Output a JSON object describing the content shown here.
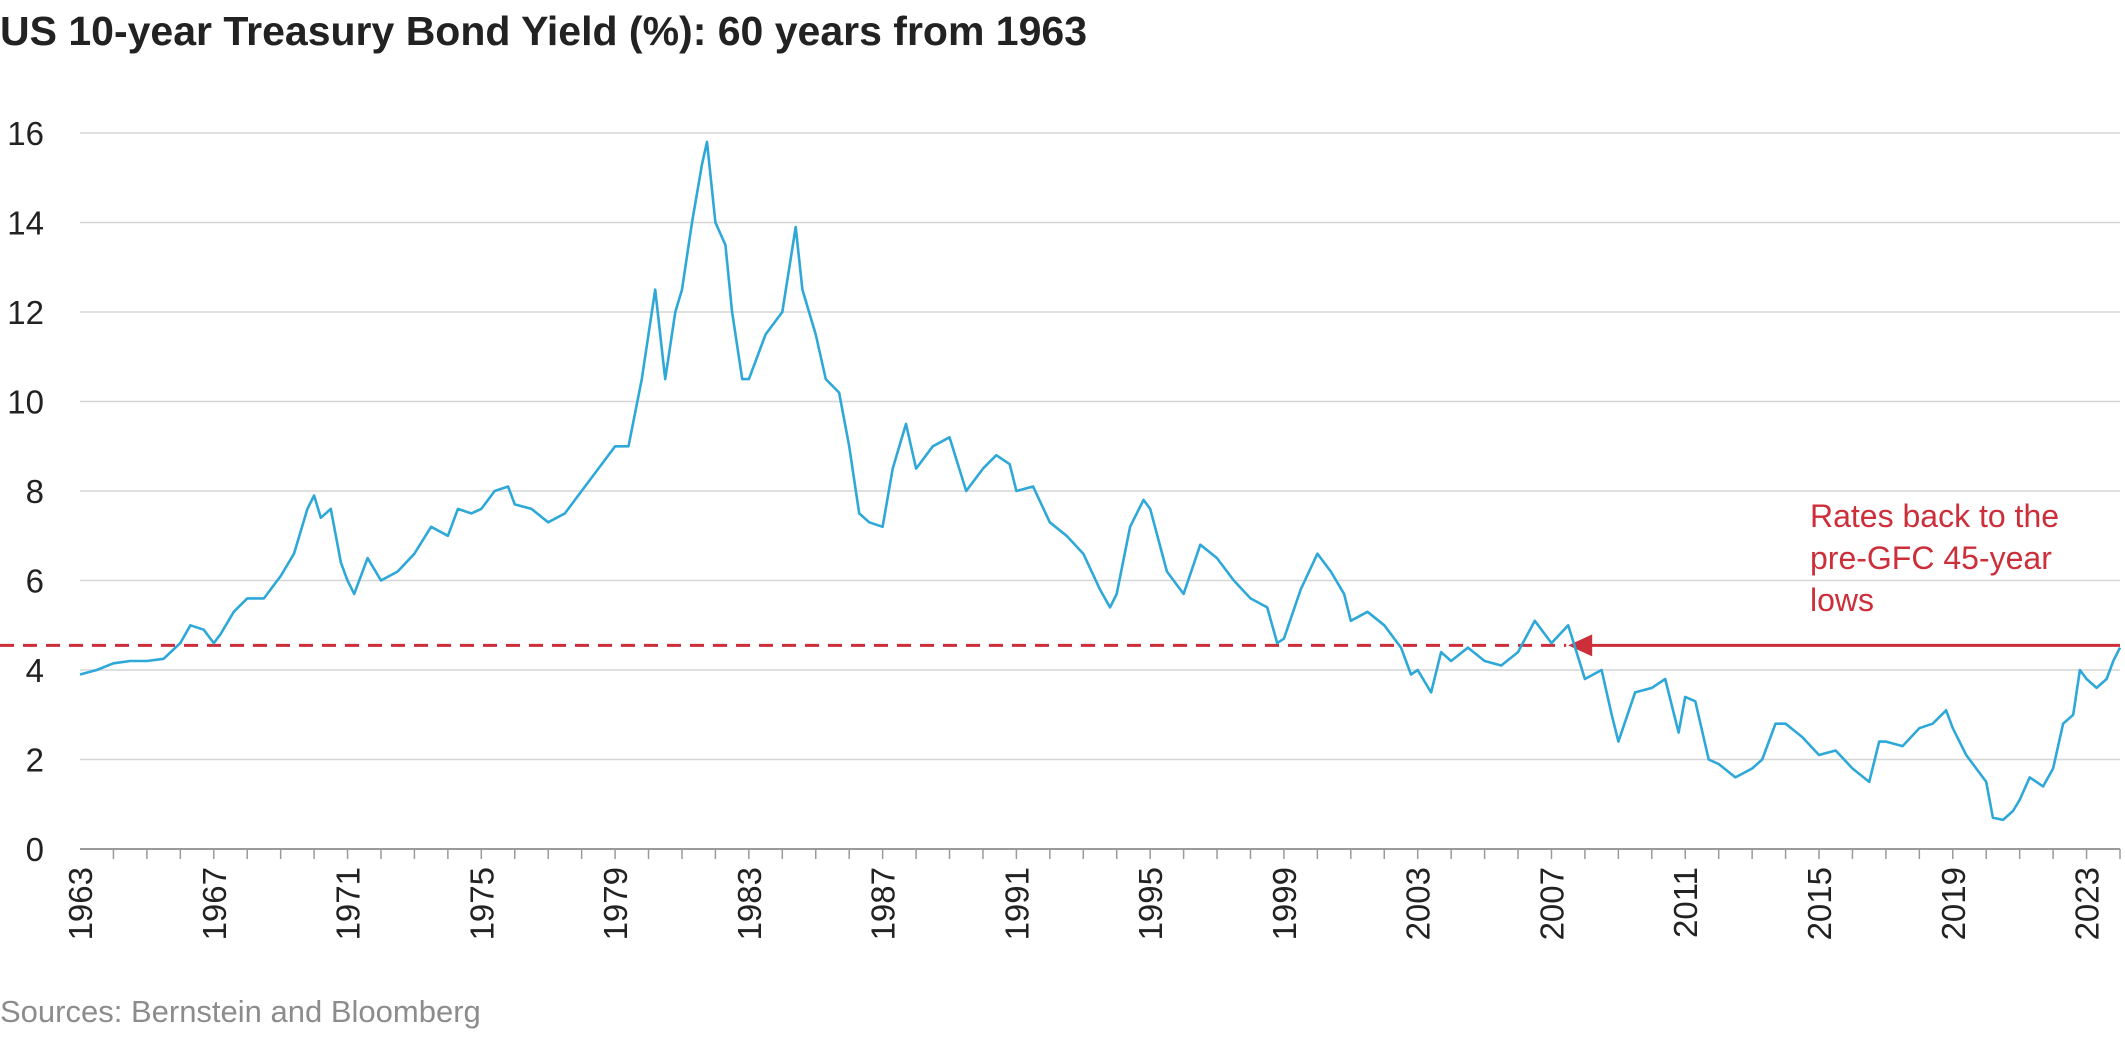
{
  "chart_data": {
    "type": "line",
    "title": "US 10-year Treasury Bond Yield (%): 60 years from 1963",
    "source": "Sources: Bernstein and Bloomberg",
    "xlabel": "",
    "ylabel": "",
    "xlim": [
      1963,
      2024
    ],
    "ylim": [
      0,
      16
    ],
    "yticks": [
      "0",
      "2",
      "4",
      "6",
      "8",
      "10",
      "12",
      "14",
      "16"
    ],
    "xticks": [
      "1963",
      "1967",
      "1971",
      "1975",
      "1979",
      "1983",
      "1987",
      "1991",
      "1995",
      "1999",
      "2003",
      "2007",
      "2011",
      "2015",
      "2019",
      "2023"
    ],
    "grid": "horizontal",
    "series": [
      {
        "color": "#2ea8d8",
        "x": [
          1963.0,
          1963.5,
          1964.0,
          1964.5,
          1965.0,
          1965.5,
          1966.0,
          1966.3,
          1966.7,
          1967.0,
          1967.2,
          1967.6,
          1968.0,
          1968.5,
          1969.0,
          1969.4,
          1969.8,
          1970.0,
          1970.2,
          1970.5,
          1970.8,
          1971.0,
          1971.2,
          1971.6,
          1972.0,
          1972.5,
          1973.0,
          1973.5,
          1974.0,
          1974.3,
          1974.7,
          1975.0,
          1975.4,
          1975.8,
          1976.0,
          1976.5,
          1977.0,
          1977.5,
          1978.0,
          1978.5,
          1979.0,
          1979.4,
          1979.8,
          1980.0,
          1980.2,
          1980.5,
          1980.8,
          1981.0,
          1981.3,
          1981.6,
          1981.75,
          1982.0,
          1982.3,
          1982.5,
          1982.8,
          1983.0,
          1983.5,
          1984.0,
          1984.4,
          1984.6,
          1985.0,
          1985.3,
          1985.7,
          1986.0,
          1986.3,
          1986.6,
          1987.0,
          1987.3,
          1987.7,
          1988.0,
          1988.5,
          1989.0,
          1989.5,
          1990.0,
          1990.4,
          1990.8,
          1991.0,
          1991.5,
          1992.0,
          1992.5,
          1993.0,
          1993.5,
          1993.8,
          1994.0,
          1994.4,
          1994.8,
          1995.0,
          1995.5,
          1996.0,
          1996.5,
          1997.0,
          1997.5,
          1998.0,
          1998.5,
          1998.8,
          1999.0,
          1999.5,
          2000.0,
          2000.4,
          2000.8,
          2001.0,
          2001.5,
          2002.0,
          2002.5,
          2002.8,
          2003.0,
          2003.4,
          2003.7,
          2004.0,
          2004.5,
          2005.0,
          2005.5,
          2006.0,
          2006.5,
          2007.0,
          2007.5,
          2008.0,
          2008.5,
          2008.8,
          2009.0,
          2009.5,
          2010.0,
          2010.4,
          2010.8,
          2011.0,
          2011.3,
          2011.7,
          2012.0,
          2012.5,
          2013.0,
          2013.3,
          2013.7,
          2014.0,
          2014.5,
          2015.0,
          2015.5,
          2016.0,
          2016.5,
          2016.8,
          2017.0,
          2017.5,
          2018.0,
          2018.4,
          2018.8,
          2019.0,
          2019.4,
          2019.8,
          2020.0,
          2020.2,
          2020.5,
          2020.8,
          2021.0,
          2021.3,
          2021.7,
          2022.0,
          2022.3,
          2022.6,
          2022.8,
          2023.0,
          2023.3,
          2023.6,
          2023.8,
          2024.0
        ],
        "values": [
          3.9,
          4.0,
          4.15,
          4.2,
          4.2,
          4.25,
          4.6,
          5.0,
          4.9,
          4.6,
          4.8,
          5.3,
          5.6,
          5.6,
          6.1,
          6.6,
          7.6,
          7.9,
          7.4,
          7.6,
          6.4,
          6.0,
          5.7,
          6.5,
          6.0,
          6.2,
          6.6,
          7.2,
          7.0,
          7.6,
          7.5,
          7.6,
          8.0,
          8.1,
          7.7,
          7.6,
          7.3,
          7.5,
          8.0,
          8.5,
          9.0,
          9.0,
          10.5,
          11.5,
          12.5,
          10.5,
          12.0,
          12.5,
          14.0,
          15.3,
          15.8,
          14.0,
          13.5,
          12.0,
          10.5,
          10.5,
          11.5,
          12.0,
          13.9,
          12.5,
          11.5,
          10.5,
          10.2,
          9.0,
          7.5,
          7.3,
          7.2,
          8.5,
          9.5,
          8.5,
          9.0,
          9.2,
          8.0,
          8.5,
          8.8,
          8.6,
          8.0,
          8.1,
          7.3,
          7.0,
          6.6,
          5.8,
          5.4,
          5.7,
          7.2,
          7.8,
          7.6,
          6.2,
          5.7,
          6.8,
          6.5,
          6.0,
          5.6,
          5.4,
          4.6,
          4.7,
          5.8,
          6.6,
          6.2,
          5.7,
          5.1,
          5.3,
          5.0,
          4.5,
          3.9,
          4.0,
          3.5,
          4.4,
          4.2,
          4.5,
          4.2,
          4.1,
          4.4,
          5.1,
          4.6,
          5.0,
          3.8,
          4.0,
          3.0,
          2.4,
          3.5,
          3.6,
          3.8,
          2.6,
          3.4,
          3.3,
          2.0,
          1.9,
          1.6,
          1.8,
          2.0,
          2.8,
          2.8,
          2.5,
          2.1,
          2.2,
          1.8,
          1.5,
          2.4,
          2.4,
          2.3,
          2.7,
          2.8,
          3.1,
          2.7,
          2.1,
          1.7,
          1.5,
          0.7,
          0.65,
          0.85,
          1.1,
          1.6,
          1.4,
          1.8,
          2.8,
          3.0,
          4.0,
          3.8,
          3.6,
          3.8,
          4.2,
          4.5
        ]
      }
    ],
    "annotation": {
      "text_lines": [
        "Rates back to the",
        "pre-GFC 45-year",
        "lows"
      ],
      "level": 4.55,
      "color": "#cc2f3a",
      "dashed_from": 1963,
      "arrow_start": 2007.5
    }
  }
}
